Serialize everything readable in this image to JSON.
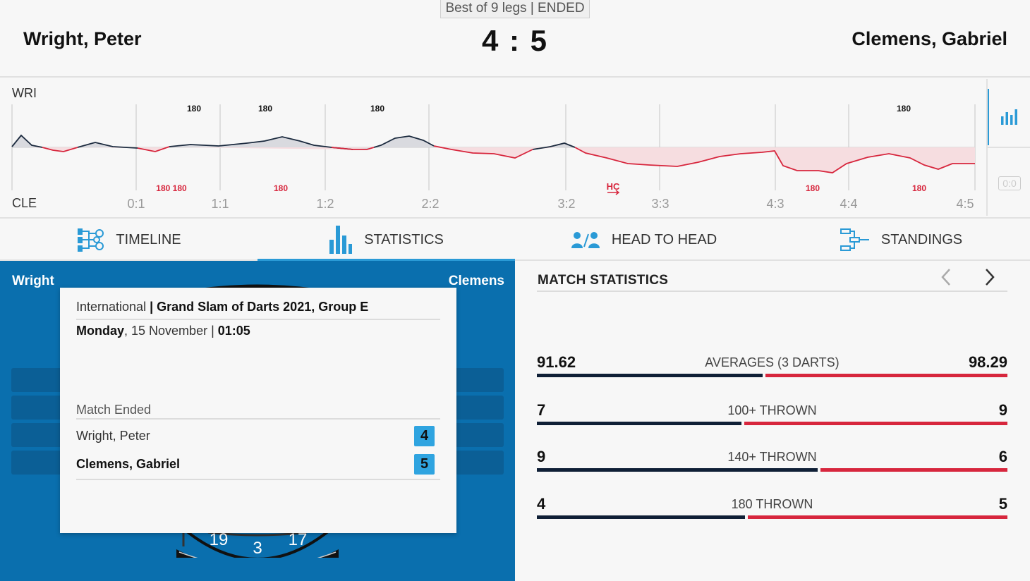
{
  "header": {
    "match_format": "Best of 9 legs | ENDED",
    "home_player": "Wright, Peter",
    "away_player": "Clemens, Gabriel",
    "score": "4 : 5"
  },
  "timeline": {
    "home_abbr": "WRI",
    "away_abbr": "CLE",
    "leg_scores": [
      "0:1",
      "1:1",
      "1:2",
      "2:2",
      "3:2",
      "3:3",
      "4:3",
      "4:4",
      "4:5"
    ],
    "home_180_labels": [
      "180",
      "180",
      "180",
      "180"
    ],
    "away_180_labels": [
      "180 180",
      "180",
      "180",
      "180"
    ],
    "hc_label": "HC",
    "zero_badge": "0:0",
    "colors": {
      "home": "#1b2a3e",
      "away": "#d7263d",
      "accent": "#2a9ad6"
    }
  },
  "tabs": [
    {
      "label": "TIMELINE",
      "icon": "timeline-icon"
    },
    {
      "label": "STATISTICS",
      "icon": "bar-chart-icon"
    },
    {
      "label": "HEAD TO HEAD",
      "icon": "head-to-head-icon"
    },
    {
      "label": "STANDINGS",
      "icon": "standings-icon"
    }
  ],
  "board": {
    "home_short": "Wright",
    "away_short": "Clemens",
    "board_numbers": [
      "19",
      "3",
      "17"
    ]
  },
  "info_card": {
    "category": "International",
    "separator": " | ",
    "tournament": "Grand Slam of Darts 2021, Group E",
    "weekday": "Monday",
    "date": ", 15 November | ",
    "time": "01:05",
    "status": "Match Ended",
    "home_player": "Wright, Peter",
    "home_score": "4",
    "away_player": "Clemens, Gabriel",
    "away_score": "5"
  },
  "match_statistics": {
    "title": "MATCH STATISTICS",
    "rows": [
      {
        "label": "AVERAGES (3 DARTS)",
        "home": "91.62",
        "away": "98.29",
        "home_value": 91.62,
        "away_value": 98.29
      },
      {
        "label": "100+ THROWN",
        "home": "7",
        "away": "9",
        "home_value": 7,
        "away_value": 9
      },
      {
        "label": "140+ THROWN",
        "home": "9",
        "away": "6",
        "home_value": 9,
        "away_value": 6
      },
      {
        "label": "180 THROWN",
        "home": "4",
        "away": "5",
        "home_value": 4,
        "away_value": 5
      }
    ]
  }
}
